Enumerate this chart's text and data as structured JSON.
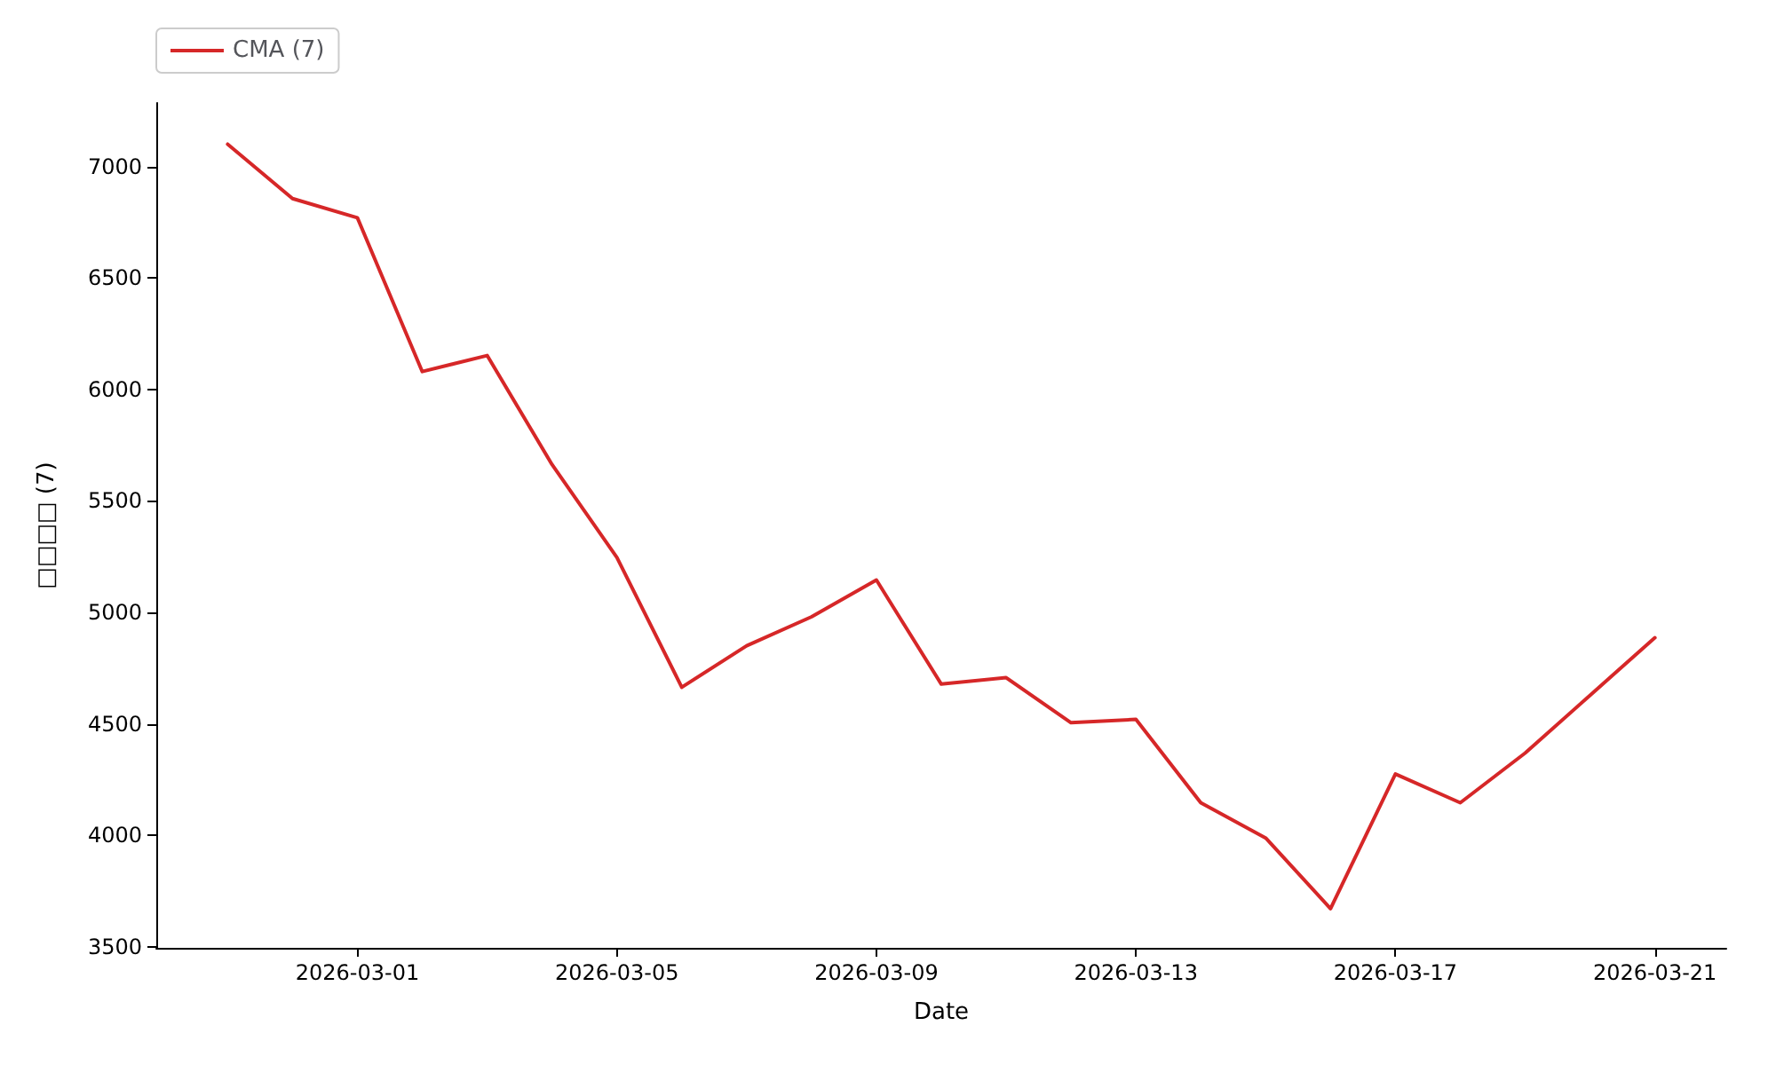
{
  "chart_data": {
    "type": "line",
    "xlabel": "Date",
    "ylabel": "□□□□ (7)",
    "x": [
      "2026-02-27",
      "2026-02-28",
      "2026-03-01",
      "2026-03-02",
      "2026-03-03",
      "2026-03-04",
      "2026-03-05",
      "2026-03-06",
      "2026-03-07",
      "2026-03-08",
      "2026-03-09",
      "2026-03-10",
      "2026-03-11",
      "2026-03-12",
      "2026-03-13",
      "2026-03-14",
      "2026-03-15",
      "2026-03-16",
      "2026-03-17",
      "2026-03-18",
      "2026-03-19",
      "2026-03-20",
      "2026-03-21"
    ],
    "series": [
      {
        "name": "CMA (7)",
        "color": "#d62728",
        "values": [
          7100,
          6856,
          6770,
          6080,
          6152,
          5663,
          5246,
          4664,
          4850,
          4980,
          5145,
          4678,
          4707,
          4505,
          4520,
          4146,
          3988,
          3671,
          4275,
          4146,
          4369,
          4628,
          4886
        ]
      }
    ],
    "xlim": [
      "2026-02-25T21:36",
      "2026-03-22T02:24"
    ],
    "xticks": [
      "2026-03-01",
      "2026-03-05",
      "2026-03-09",
      "2026-03-13",
      "2026-03-17",
      "2026-03-21"
    ],
    "ylim": [
      3495,
      7285
    ],
    "yticks": [
      3500,
      4000,
      4500,
      5000,
      5500,
      6000,
      6500,
      7000
    ],
    "legend": "top left",
    "grid": false,
    "marker": "none",
    "line_style": "solid"
  }
}
